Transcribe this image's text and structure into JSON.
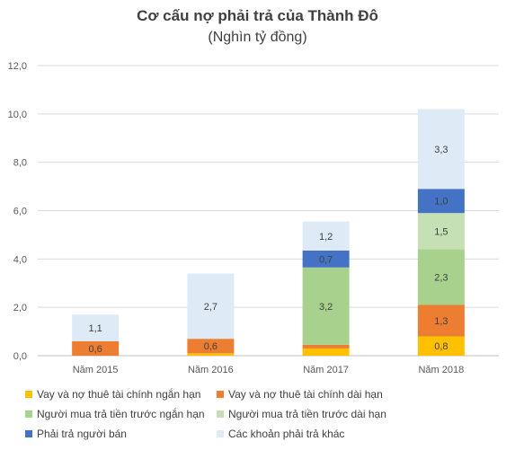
{
  "chart_data": {
    "type": "bar",
    "stacked": true,
    "title": "Cơ cấu nợ phải trả của Thành Đô",
    "subtitle": "(Nghìn tỷ đồng)",
    "categories": [
      "Năm 2015",
      "Năm 2016",
      "Năm 2017",
      "Năm 2018"
    ],
    "ylim": [
      0,
      12
    ],
    "yticks": [
      "0,0",
      "2,0",
      "4,0",
      "6,0",
      "8,0",
      "10,0",
      "12,0"
    ],
    "grid": true,
    "legend_position": "bottom",
    "series": [
      {
        "name": "Vay và nợ thuê tài chính ngắn hạn",
        "color": "#FFC000",
        "values": [
          0.0,
          0.1,
          0.3,
          0.8
        ],
        "labels": [
          "",
          "",
          "",
          "0,8"
        ]
      },
      {
        "name": "Vay và nợ thuê tài chính dài hạn",
        "color": "#ED7D31",
        "values": [
          0.6,
          0.6,
          0.15,
          1.3
        ],
        "labels": [
          "0,6",
          "0,6",
          "",
          "1,3"
        ]
      },
      {
        "name": "Người mua trả tiền trước ngắn hạn",
        "color": "#A9D18E",
        "values": [
          0.0,
          0.0,
          3.2,
          2.3
        ],
        "labels": [
          "",
          "",
          "3,2",
          "2,3"
        ]
      },
      {
        "name": "Người mua trả tiền trước dài hạn",
        "color": "#C5E0B4",
        "values": [
          0.0,
          0.0,
          0.0,
          1.5
        ],
        "labels": [
          "",
          "",
          "",
          "1,5"
        ]
      },
      {
        "name": "Phải trả người bán",
        "color": "#4472C4",
        "values": [
          0.0,
          0.0,
          0.7,
          1.0
        ],
        "labels": [
          "",
          "",
          "0,7",
          "1,0"
        ]
      },
      {
        "name": "Các khoản phải trả khác",
        "color": "#DEEBF7",
        "values": [
          1.1,
          2.7,
          1.2,
          3.3
        ],
        "labels": [
          "1,1",
          "2,7",
          "1,2",
          "3,3"
        ]
      }
    ]
  }
}
